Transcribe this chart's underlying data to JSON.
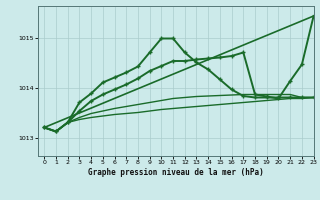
{
  "title": "Graphe pression niveau de la mer (hPa)",
  "background_color": "#cceaea",
  "grid_color": "#aacccc",
  "line_color": "#1a6b2a",
  "xlim": [
    -0.5,
    23
  ],
  "ylim": [
    1012.65,
    1015.65
  ],
  "yticks": [
    1013,
    1014,
    1015
  ],
  "xticks": [
    0,
    1,
    2,
    3,
    4,
    5,
    6,
    7,
    8,
    9,
    10,
    11,
    12,
    13,
    14,
    15,
    16,
    17,
    18,
    19,
    20,
    21,
    22,
    23
  ],
  "series": [
    {
      "x": [
        0,
        23
      ],
      "y": [
        1013.22,
        1015.45
      ],
      "marker": null,
      "linewidth": 1.2
    },
    {
      "x": [
        0,
        1,
        2,
        3,
        4,
        5,
        6,
        7,
        8,
        9,
        10,
        11,
        12,
        13,
        14,
        15,
        16,
        17,
        18,
        19,
        20,
        21,
        22,
        23
      ],
      "y": [
        1013.22,
        1013.14,
        1013.32,
        1013.38,
        1013.42,
        1013.45,
        1013.48,
        1013.5,
        1013.52,
        1013.55,
        1013.58,
        1013.6,
        1013.62,
        1013.64,
        1013.66,
        1013.68,
        1013.7,
        1013.72,
        1013.74,
        1013.76,
        1013.78,
        1013.8,
        1013.8,
        1013.82
      ],
      "marker": null,
      "linewidth": 1.0
    },
    {
      "x": [
        0,
        1,
        2,
        3,
        4,
        5,
        6,
        7,
        8,
        9,
        10,
        11,
        12,
        13,
        14,
        15,
        16,
        17,
        18,
        19,
        20,
        21,
        22,
        23
      ],
      "y": [
        1013.22,
        1013.14,
        1013.32,
        1013.42,
        1013.5,
        1013.55,
        1013.6,
        1013.64,
        1013.68,
        1013.72,
        1013.76,
        1013.8,
        1013.82,
        1013.84,
        1013.85,
        1013.86,
        1013.87,
        1013.88,
        1013.88,
        1013.88,
        1013.88,
        1013.88,
        1013.82,
        1013.82
      ],
      "marker": null,
      "linewidth": 1.0
    },
    {
      "x": [
        0,
        1,
        2,
        3,
        4,
        5,
        6,
        7,
        8,
        9,
        10,
        11,
        12,
        13,
        14,
        15,
        16,
        17,
        18,
        19,
        20,
        21,
        22,
        23
      ],
      "y": [
        1013.22,
        1013.14,
        1013.32,
        1013.72,
        1013.9,
        1014.12,
        1014.22,
        1014.32,
        1014.44,
        1014.72,
        1015.0,
        1015.0,
        1014.72,
        1014.52,
        1014.38,
        1014.18,
        1013.98,
        1013.85,
        1013.82,
        1013.82,
        1013.82,
        1013.82,
        1013.82,
        1013.82
      ],
      "marker": "+",
      "linewidth": 1.4
    },
    {
      "x": [
        0,
        1,
        2,
        3,
        4,
        5,
        6,
        7,
        8,
        9,
        10,
        11,
        12,
        13,
        14,
        15,
        16,
        17,
        18,
        19,
        20,
        21,
        22,
        23
      ],
      "y": [
        1013.22,
        1013.14,
        1013.32,
        1013.55,
        1013.75,
        1013.88,
        1013.98,
        1014.08,
        1014.2,
        1014.35,
        1014.45,
        1014.55,
        1014.55,
        1014.58,
        1014.6,
        1014.62,
        1014.65,
        1014.72,
        1013.88,
        1013.84,
        1013.8,
        1014.15,
        1014.48,
        1015.45
      ],
      "marker": "+",
      "linewidth": 1.4
    }
  ]
}
